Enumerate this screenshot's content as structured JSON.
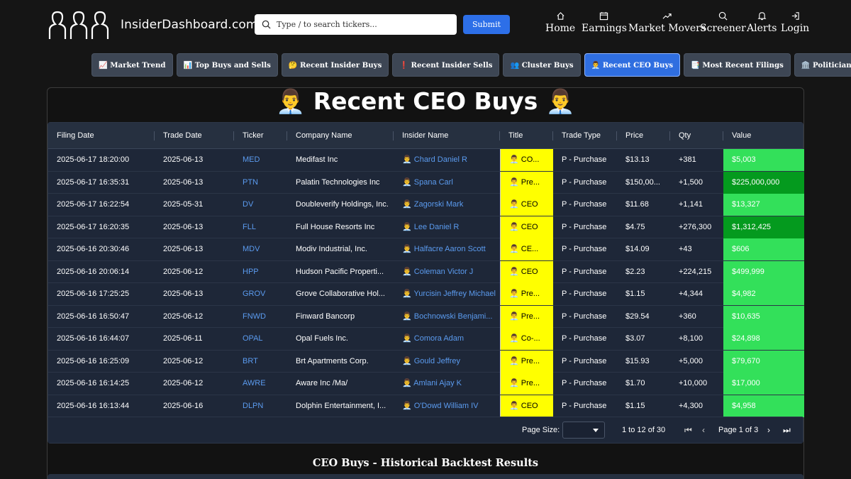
{
  "brand": {
    "name": "InsiderDashboard.com"
  },
  "search": {
    "placeholder": "Type / to search tickers...",
    "submit_label": "Submit"
  },
  "nav": [
    {
      "label": "Home",
      "icon": "home-icon"
    },
    {
      "label": "Earnings",
      "icon": "calendar-icon"
    },
    {
      "label": "Market Movers",
      "icon": "trend-up-icon"
    },
    {
      "label": "Screener",
      "icon": "search-icon"
    },
    {
      "label": "Alerts",
      "icon": "bell-icon"
    },
    {
      "label": "Login",
      "icon": "login-icon"
    }
  ],
  "tabs": [
    {
      "label": "📈 Market Trend"
    },
    {
      "label": "📊 Top Buys and Sells"
    },
    {
      "label": "🤔 Recent Insider Buys"
    },
    {
      "label": "❗ Recent Insider Sells"
    },
    {
      "label": "👥 Cluster Buys"
    },
    {
      "label": "👨‍💼 Recent CEO Buys",
      "active": true
    },
    {
      "label": "📑 Most Recent Filings"
    },
    {
      "label": "🏛️ Politician Trades"
    }
  ],
  "panel": {
    "title": "👨‍💼 Recent CEO Buys 👨‍💼"
  },
  "table": {
    "columns": [
      "Filing Date",
      "Trade Date",
      "Ticker",
      "Company Name",
      "Insider Name",
      "Title",
      "Trade Type",
      "Price",
      "Qty",
      "Value"
    ],
    "rows": [
      [
        "2025-06-17 18:20:00",
        "2025-06-13",
        "MED",
        "Medifast Inc",
        "👨‍💼 Chard Daniel R",
        "👨‍💼 CO...",
        "P - Purchase",
        "$13.13",
        "+381",
        "$5,003"
      ],
      [
        "2025-06-17 16:35:31",
        "2025-06-13",
        "PTN",
        "Palatin Technologies Inc",
        "👨‍💼 Spana Carl",
        "👨‍💼 Pre...",
        "P - Purchase",
        "$150,00...",
        "+1,500",
        "$225,000,000"
      ],
      [
        "2025-06-17 16:22:54",
        "2025-05-31",
        "DV",
        "Doubleverify Holdings, Inc.",
        "👨‍💼 Zagorski Mark",
        "👨‍💼 CEO",
        "P - Purchase",
        "$11.68",
        "+1,141",
        "$13,327"
      ],
      [
        "2025-06-17 16:20:35",
        "2025-06-13",
        "FLL",
        "Full House Resorts Inc",
        "👨‍💼 Lee Daniel R",
        "👨‍💼 CEO",
        "P - Purchase",
        "$4.75",
        "+276,300",
        "$1,312,425"
      ],
      [
        "2025-06-16 20:30:46",
        "2025-06-13",
        "MDV",
        "Modiv Industrial, Inc.",
        "👨‍💼 Halfacre Aaron Scott",
        "👨‍💼 CE...",
        "P - Purchase",
        "$14.09",
        "+43",
        "$606"
      ],
      [
        "2025-06-16 20:06:14",
        "2025-06-12",
        "HPP",
        "Hudson Pacific Properti...",
        "👨‍💼 Coleman Victor J",
        "👨‍💼 CEO",
        "P - Purchase",
        "$2.23",
        "+224,215",
        "$499,999"
      ],
      [
        "2025-06-16 17:25:25",
        "2025-06-13",
        "GROV",
        "Grove Collaborative Hol...",
        "👨‍💼 Yurcisin Jeffrey Michael",
        "👨‍💼 Pre...",
        "P - Purchase",
        "$1.15",
        "+4,344",
        "$4,982"
      ],
      [
        "2025-06-16 16:50:47",
        "2025-06-12",
        "FNWD",
        "Finward Bancorp",
        "👨‍💼 Bochnowski Benjami...",
        "👨‍💼 Pre...",
        "P - Purchase",
        "$29.54",
        "+360",
        "$10,635"
      ],
      [
        "2025-06-16 16:44:07",
        "2025-06-11",
        "OPAL",
        "Opal Fuels Inc.",
        "👨‍💼 Comora Adam",
        "👨‍💼 Co-...",
        "P - Purchase",
        "$3.07",
        "+8,100",
        "$24,898"
      ],
      [
        "2025-06-16 16:25:09",
        "2025-06-12",
        "BRT",
        "Brt Apartments Corp.",
        "👨‍💼 Gould Jeffrey",
        "👨‍💼 Pre...",
        "P - Purchase",
        "$15.93",
        "+5,000",
        "$79,670"
      ],
      [
        "2025-06-16 16:14:25",
        "2025-06-12",
        "AWRE",
        "Aware Inc /Ma/",
        "👨‍💼 Amlani Ajay K",
        "👨‍💼 Pre...",
        "P - Purchase",
        "$1.70",
        "+10,000",
        "$17,000"
      ],
      [
        "2025-06-16 16:13:44",
        "2025-06-16",
        "DLPN",
        "Dolphin Entertainment, I...",
        "👨‍💼 O'Dowd William IV",
        "👨‍💼 CEO",
        "P - Purchase",
        "$1.15",
        "+4,300",
        "$4,958"
      ]
    ],
    "dark_value_rows": [
      1,
      3
    ]
  },
  "pager": {
    "page_size_label": "Page Size:",
    "range": "1 to 12 of 30",
    "page": "Page 1 of 3"
  },
  "section2": {
    "title": "CEO Buys - Historical Backtest Results"
  },
  "colors": {
    "title_highlight": "#ffff00",
    "value_green": "#33e05a",
    "value_dark_green": "#049a1e",
    "accent": "#2f6ee0"
  }
}
